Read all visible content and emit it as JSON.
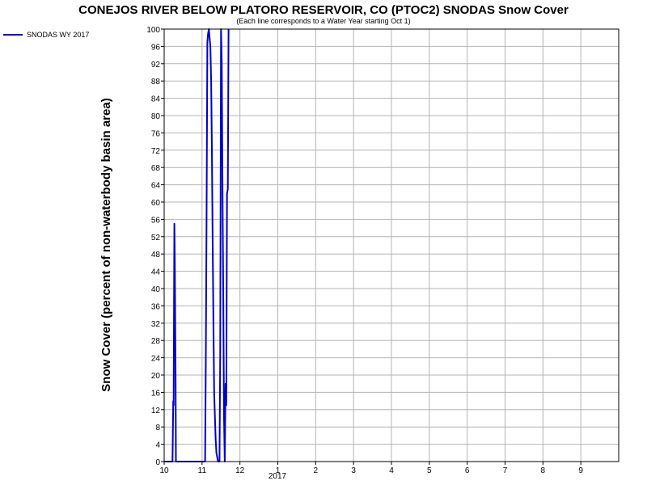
{
  "chart_data": {
    "type": "line",
    "title": "CONEJOS RIVER BELOW PLATORO RESERVOIR, CO (PTOC2) SNODAS Snow Cover",
    "subtitle": "(Each line corresponds to a Water Year starting Oct 1)",
    "ylabel": "Snow Cover (percent of non-waterbody basin area)",
    "xlabel": "",
    "ylim": [
      0,
      100
    ],
    "y_ticks": [
      0,
      4,
      8,
      12,
      16,
      20,
      24,
      28,
      32,
      36,
      40,
      44,
      48,
      52,
      56,
      60,
      64,
      68,
      72,
      76,
      80,
      84,
      88,
      92,
      96,
      100
    ],
    "x_ticks": [
      {
        "label": "10",
        "value": 0
      },
      {
        "label": "11",
        "value": 1
      },
      {
        "label": "12",
        "value": 2
      },
      {
        "label": "1",
        "value": 3
      },
      {
        "label": "2",
        "value": 4
      },
      {
        "label": "3",
        "value": 5
      },
      {
        "label": "4",
        "value": 6
      },
      {
        "label": "5",
        "value": 7
      },
      {
        "label": "6",
        "value": 8
      },
      {
        "label": "7",
        "value": 9
      },
      {
        "label": "8",
        "value": 10
      },
      {
        "label": "9",
        "value": 11
      }
    ],
    "x_sublabel": "2017",
    "grid": true,
    "legend_position": "top-left",
    "series": [
      {
        "name": "SNODAS WY 2017",
        "color": "#0000cc",
        "points": [
          [
            0.0,
            0
          ],
          [
            0.22,
            0
          ],
          [
            0.24,
            14
          ],
          [
            0.25,
            13
          ],
          [
            0.27,
            55
          ],
          [
            0.28,
            47
          ],
          [
            0.3,
            20
          ],
          [
            0.31,
            0
          ],
          [
            1.08,
            0
          ],
          [
            1.1,
            24
          ],
          [
            1.12,
            60
          ],
          [
            1.14,
            97
          ],
          [
            1.16,
            99
          ],
          [
            1.18,
            100
          ],
          [
            1.2,
            98
          ],
          [
            1.22,
            96
          ],
          [
            1.24,
            88
          ],
          [
            1.26,
            72
          ],
          [
            1.28,
            52
          ],
          [
            1.3,
            32
          ],
          [
            1.32,
            16
          ],
          [
            1.34,
            10
          ],
          [
            1.36,
            5
          ],
          [
            1.38,
            2
          ],
          [
            1.4,
            1
          ],
          [
            1.42,
            0
          ],
          [
            1.46,
            0
          ],
          [
            1.48,
            25
          ],
          [
            1.5,
            100
          ],
          [
            1.52,
            92
          ],
          [
            1.54,
            64
          ],
          [
            1.56,
            37
          ],
          [
            1.58,
            10
          ],
          [
            1.6,
            0
          ],
          [
            1.62,
            18
          ],
          [
            1.64,
            13
          ],
          [
            1.66,
            62
          ],
          [
            1.68,
            63
          ],
          [
            1.7,
            100
          ]
        ]
      }
    ]
  }
}
